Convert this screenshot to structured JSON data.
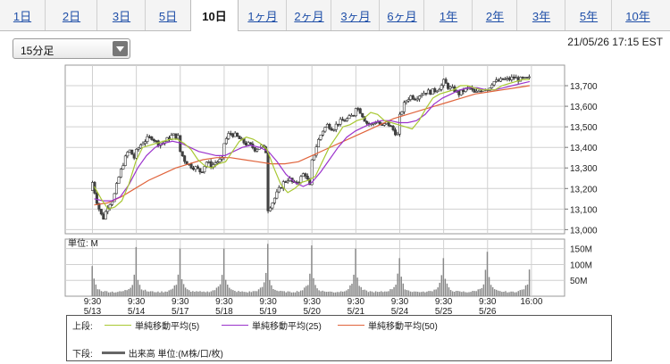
{
  "tabs": [
    "1日",
    "2日",
    "3日",
    "5日",
    "10日",
    "1ヶ月",
    "2ヶ月",
    "3ヶ月",
    "6ヶ月",
    "1年",
    "2年",
    "3年",
    "5年",
    "10年"
  ],
  "active_tab": "10日",
  "interval": {
    "value": "15分足",
    "icon": "chevron-down-icon"
  },
  "timestamp": "21/05/26 17:15 EST",
  "legend": {
    "upper_label": "上段:",
    "lower_label": "下段:",
    "ma5": "単純移動平均(5)",
    "ma25": "単純移動平均(25)",
    "ma50": "単純移動平均(50)",
    "volume": "出来高 単位:(M株/口/枚)"
  },
  "colors": {
    "ma5": "#a8c832",
    "ma25": "#9b33cc",
    "ma50": "#e0643c",
    "up": "#ffffff",
    "down": "#444444",
    "volume": "#888888"
  },
  "chart_data": [
    {
      "type": "candlestick",
      "title": "",
      "x_tick_labels": [
        "9:30\n5/13",
        "9:30\n5/14",
        "9:30\n5/17",
        "9:30\n5/18",
        "9:30\n5/19",
        "9:30\n5/20",
        "9:30\n5/21",
        "9:30\n5/24",
        "9:30\n5/25",
        "9:30\n5/26",
        "16:00"
      ],
      "y_tick_labels": [
        "13,000",
        "13,100",
        "13,200",
        "13,300",
        "13,400",
        "13,500",
        "13,600",
        "13,700"
      ],
      "ylim": [
        12980,
        13800
      ],
      "grid": true,
      "sessions": [
        {
          "date": "5/13",
          "close": [
            13230,
            13120,
            13050,
            13120,
            13150,
            13250,
            13330,
            13390,
            13350
          ]
        },
        {
          "date": "5/14",
          "close": [
            13380,
            13420,
            13440,
            13450,
            13420,
            13420,
            13440,
            13460,
            13450
          ]
        },
        {
          "date": "5/17",
          "close": [
            13380,
            13330,
            13310,
            13300,
            13280,
            13330,
            13310,
            13330,
            13340
          ]
        },
        {
          "date": "5/18",
          "close": [
            13420,
            13470,
            13460,
            13440,
            13420,
            13410,
            13390,
            13410,
            13380
          ]
        },
        {
          "date": "5/19",
          "close": [
            13100,
            13140,
            13190,
            13230,
            13250,
            13220,
            13240,
            13280,
            13210
          ]
        },
        {
          "date": "5/20",
          "close": [
            13330,
            13420,
            13480,
            13510,
            13490,
            13520,
            13530,
            13540,
            13560
          ]
        },
        {
          "date": "5/21",
          "close": [
            13600,
            13570,
            13520,
            13510,
            13530,
            13500,
            13520,
            13490,
            13460
          ]
        },
        {
          "date": "5/24",
          "close": [
            13550,
            13620,
            13650,
            13640,
            13660,
            13670,
            13670,
            13680,
            13700
          ]
        },
        {
          "date": "5/25",
          "close": [
            13720,
            13690,
            13680,
            13660,
            13680,
            13690,
            13660,
            13680,
            13690
          ]
        },
        {
          "date": "5/26",
          "close": [
            13680,
            13720,
            13720,
            13730,
            13730,
            13740,
            13730,
            13730,
            13735
          ]
        }
      ],
      "ma5": [
        13210,
        13150,
        13100,
        13110,
        13140,
        13220,
        13330,
        13400,
        13410,
        13420,
        13430,
        13440,
        13440,
        13420,
        13390,
        13340,
        13310,
        13300,
        13320,
        13330,
        13380,
        13430,
        13450,
        13440,
        13420,
        13390,
        13300,
        13220,
        13180,
        13200,
        13230,
        13240,
        13260,
        13330,
        13400,
        13450,
        13500,
        13510,
        13530,
        13540,
        13570,
        13560,
        13530,
        13520,
        13510,
        13500,
        13490,
        13530,
        13590,
        13640,
        13660,
        13670,
        13680,
        13700,
        13700,
        13690,
        13680,
        13680,
        13680,
        13700,
        13710,
        13720,
        13730,
        13730
      ],
      "ma25": [
        13150,
        13140,
        13140,
        13160,
        13220,
        13300,
        13360,
        13400,
        13420,
        13430,
        13420,
        13400,
        13380,
        13370,
        13360,
        13360,
        13380,
        13400,
        13410,
        13400,
        13380,
        13330,
        13270,
        13230,
        13210,
        13230,
        13280,
        13340,
        13400,
        13450,
        13480,
        13500,
        13520,
        13530,
        13530,
        13520,
        13520,
        13530,
        13560,
        13610,
        13640,
        13660,
        13680,
        13690,
        13690,
        13680,
        13680,
        13690,
        13700,
        13710,
        13720
      ],
      "ma50": [
        13120,
        13130,
        13160,
        13200,
        13240,
        13270,
        13300,
        13320,
        13340,
        13350,
        13350,
        13340,
        13330,
        13320,
        13320,
        13330,
        13360,
        13390,
        13420,
        13450,
        13480,
        13510,
        13540,
        13560,
        13580,
        13600,
        13620,
        13640,
        13660,
        13670,
        13680,
        13690,
        13700
      ]
    },
    {
      "type": "bar",
      "title": "",
      "ylabel": "単位: M",
      "y_tick_labels": [
        "50M",
        "100M",
        "150M"
      ],
      "ylim": [
        0,
        180
      ],
      "session_volume_pattern": [
        150,
        55,
        35,
        25,
        20,
        18,
        16,
        15,
        15,
        14,
        14,
        14,
        13,
        13,
        14,
        14,
        15,
        16,
        18,
        20,
        24,
        30,
        40,
        75
      ],
      "session_peaks": [
        95,
        155,
        150,
        150,
        165,
        160,
        150,
        120,
        120,
        140,
        130
      ]
    }
  ]
}
